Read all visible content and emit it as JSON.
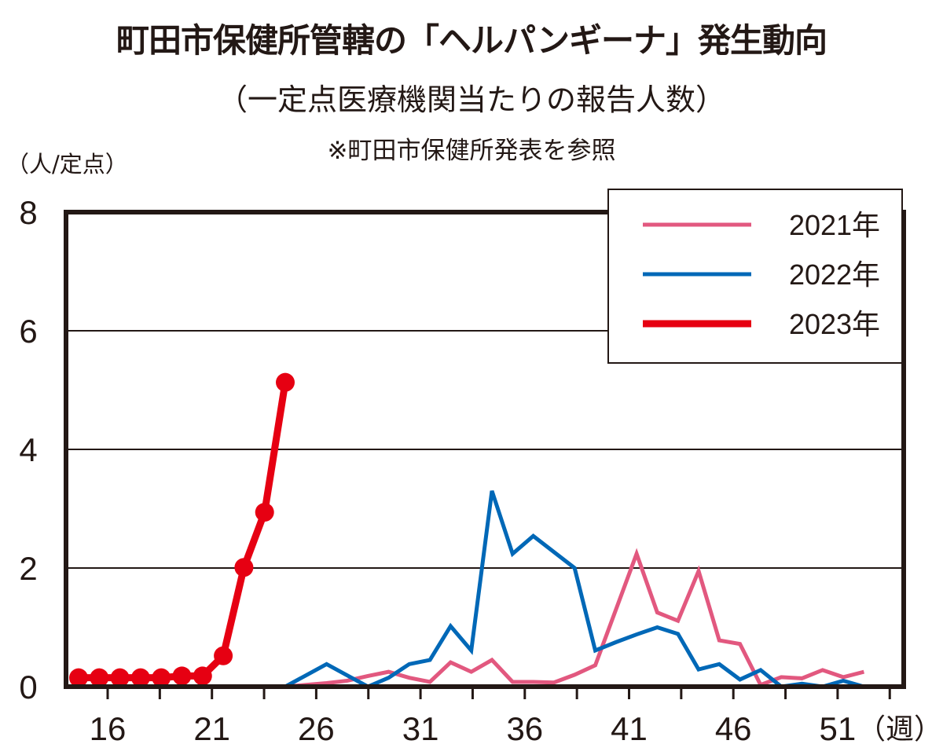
{
  "title": "町田市保健所管轄の「ヘルパンギーナ」発生動向",
  "subtitle": "（一定点医療機関当たりの報告人数）",
  "note": "※町田市保健所発表を参照",
  "chart_data": {
    "type": "line",
    "title": "町田市保健所管轄の「ヘルパンギーナ」発生動向",
    "ylabel": "（人/定点）",
    "xlabel": "（週）",
    "ylim": [
      0,
      8
    ],
    "yticks": [
      "0",
      "2",
      "4",
      "6",
      "8"
    ],
    "xlim": [
      14,
      54
    ],
    "xticks": [
      "16",
      "21",
      "26",
      "31",
      "36",
      "41",
      "46",
      "51"
    ],
    "grid": true,
    "legend_position": "top-right",
    "series": [
      {
        "name": "2021年",
        "color": "#e2587f",
        "markers": false,
        "x": [
          25,
          26,
          27,
          28,
          29,
          30,
          31,
          32,
          33,
          34,
          35,
          36,
          37,
          38,
          39,
          40,
          41,
          42,
          43,
          44,
          45,
          46,
          47,
          48,
          49,
          50,
          51,
          52,
          53
        ],
        "values": [
          0,
          0.03,
          0.06,
          0.1,
          0.18,
          0.25,
          0.15,
          0.08,
          0.41,
          0.25,
          0.45,
          0.08,
          0.08,
          0.07,
          0.2,
          0.36,
          1.3,
          2.24,
          1.25,
          1.11,
          1.95,
          0.78,
          0.72,
          0.03,
          0.16,
          0.14,
          0.28,
          0.16,
          0.25
        ]
      },
      {
        "name": "2022年",
        "color": "#0068b7",
        "markers": false,
        "x": [
          25,
          26,
          27,
          28,
          29,
          30,
          31,
          32,
          33,
          34,
          35,
          36,
          37,
          38,
          39,
          40,
          41,
          42,
          43,
          44,
          45,
          46,
          47,
          48,
          49,
          50,
          51,
          52,
          53
        ],
        "values": [
          0,
          0.19,
          0.38,
          0.19,
          0,
          0.15,
          0.38,
          0.45,
          1.02,
          0.61,
          3.3,
          2.24,
          2.54,
          2.27,
          2.0,
          0.61,
          0.75,
          0.88,
          1.0,
          0.89,
          0.29,
          0.38,
          0.12,
          0.28,
          0,
          0.05,
          0,
          0.1,
          0
        ]
      },
      {
        "name": "2023年",
        "color": "#e60012",
        "markers": true,
        "x": [
          15,
          16,
          17,
          18,
          19,
          20,
          21,
          22,
          23,
          24,
          25
        ],
        "values": [
          0.15,
          0.15,
          0.15,
          0.15,
          0.15,
          0.18,
          0.18,
          0.52,
          2.01,
          2.94,
          5.13
        ]
      }
    ]
  }
}
